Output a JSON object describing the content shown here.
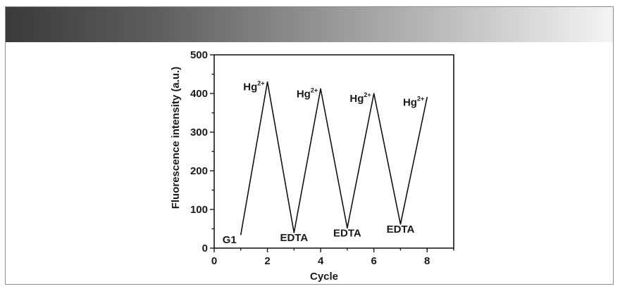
{
  "chart_data": {
    "type": "line",
    "title": "",
    "xlabel": "Cycle",
    "ylabel": "Fluorescence intensity (a.u.)",
    "xlim": [
      0,
      9
    ],
    "ylim": [
      0,
      500
    ],
    "x_ticks": [
      0,
      2,
      4,
      6,
      8
    ],
    "y_ticks": [
      0,
      100,
      200,
      300,
      400,
      500
    ],
    "x_tick_labels": [
      "0",
      "2",
      "4",
      "6",
      "8"
    ],
    "y_tick_labels": [
      "0",
      "100",
      "200",
      "300",
      "400",
      "500"
    ],
    "grid": false,
    "legend": "none",
    "line_color": "#111111",
    "series": [
      {
        "x": [
          1,
          2,
          3,
          4,
          5,
          6,
          7,
          8
        ],
        "y": [
          35,
          430,
          40,
          412,
          52,
          400,
          62,
          390
        ]
      }
    ],
    "annotations": [
      {
        "base": "G1",
        "sup": "",
        "x": 1,
        "y": 35,
        "pos": "left"
      },
      {
        "base": "Hg",
        "sup": "2+",
        "x": 2,
        "y": 430,
        "pos": "left"
      },
      {
        "base": "EDTA",
        "sup": "",
        "x": 3,
        "y": 40,
        "pos": "below"
      },
      {
        "base": "Hg",
        "sup": "2+",
        "x": 4,
        "y": 412,
        "pos": "left"
      },
      {
        "base": "EDTA",
        "sup": "",
        "x": 5,
        "y": 52,
        "pos": "below"
      },
      {
        "base": "Hg",
        "sup": "2+",
        "x": 6,
        "y": 400,
        "pos": "left"
      },
      {
        "base": "EDTA",
        "sup": "",
        "x": 7,
        "y": 62,
        "pos": "below"
      },
      {
        "base": "Hg",
        "sup": "2+",
        "x": 8,
        "y": 390,
        "pos": "left"
      }
    ]
  }
}
